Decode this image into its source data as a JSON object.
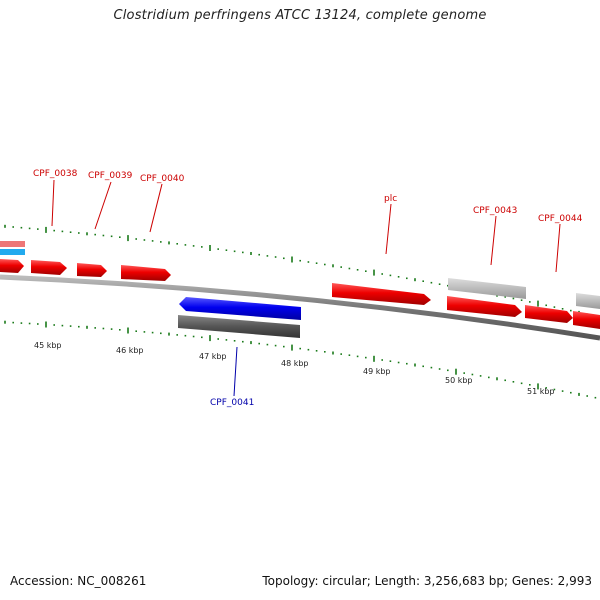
{
  "title": "Clostridium perfringens ATCC 13124, complete genome",
  "footer": {
    "accession": "Accession: NC_008261",
    "summary": "Topology: circular; Length: 3,256,683 bp; Genes: 2,993"
  },
  "colors": {
    "forward_gene": "#ee0000",
    "reverse_gene": "#0000ee",
    "label_forward": "#cc0000",
    "label_reverse": "#0000aa",
    "ticks": "#1a7a1a",
    "backbone": "#888888",
    "pseudo_gene": "#bbbbbb",
    "dark_gene": "#555555"
  },
  "gene_labels": {
    "g38": "CPF_0038",
    "g39": "CPF_0039",
    "g40": "CPF_0040",
    "plc": "plc",
    "g43": "CPF_0043",
    "g44": "CPF_0044",
    "g41": "CPF_0041"
  },
  "kbp_labels": {
    "k45": "45 kbp",
    "k46": "46 kbp",
    "k47": "47 kbp",
    "k48": "48 kbp",
    "k49": "49 kbp",
    "k50": "50 kbp",
    "k51": "51 kbp"
  }
}
